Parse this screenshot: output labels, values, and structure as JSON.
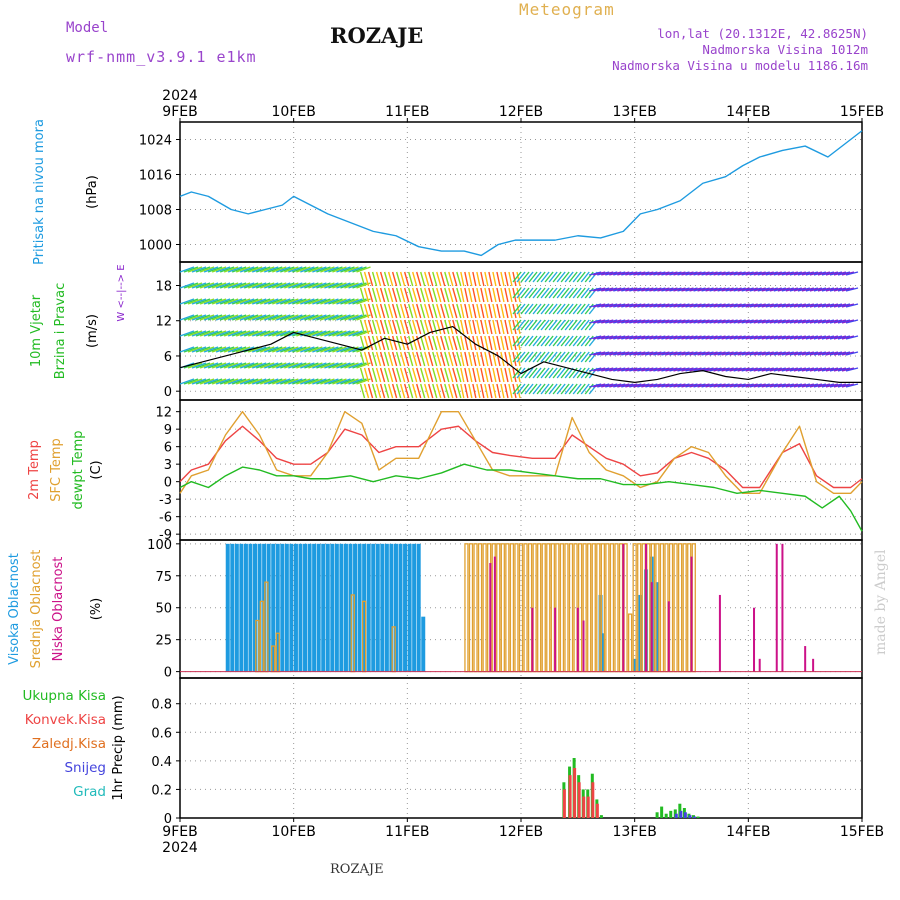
{
  "header": {
    "model_label": "Model",
    "model_name": "wrf-nmm_v3.9.1 e1km",
    "station": "ROZAJE",
    "product": "Meteogram",
    "lonlat": "lon,lat (20.1312E, 42.8625N)",
    "elevation": "Nadmorska Visina 1012m",
    "model_elevation": "Nadmorska Visina u modelu 1186.16m",
    "footer_station": "ROZAJE",
    "credit": "made by Angel"
  },
  "colors": {
    "pressure": "#1e9be0",
    "temp2m": "#ee4444",
    "sfc_temp": "#e0a030",
    "dewpt": "#22bb22",
    "cloud_high": "#1e9be0",
    "cloud_mid": "#e0a030",
    "cloud_low": "#cc1188",
    "precip_total": "#22bb22",
    "precip_conv": "#ee4444",
    "precip_grid": "#e07020",
    "snow": "#4444dd",
    "grad": "#22bbbb",
    "wind_purple": "#8822cc",
    "credit": "#cccccc"
  },
  "chart_data": [
    {
      "type": "line",
      "panel": "pressure",
      "x_labels": [
        "9FEB",
        "10FEB",
        "11FEB",
        "12FEB",
        "13FEB",
        "14FEB",
        "15FEB"
      ],
      "year": "2024",
      "ylabel": [
        "Pritisak na nivou mora",
        "(hPa)"
      ],
      "ylim": [
        996,
        1028
      ],
      "yticks": [
        1000,
        1008,
        1016,
        1024
      ],
      "series": [
        {
          "x": [
            0,
            0.1,
            0.25,
            0.45,
            0.6,
            0.75,
            0.9,
            1.0,
            1.15,
            1.3,
            1.5,
            1.7,
            1.9,
            2.1,
            2.3,
            2.5,
            2.65,
            2.8,
            2.95,
            3.1,
            3.3,
            3.5,
            3.7,
            3.9,
            4.05,
            4.2,
            4.4,
            4.6,
            4.8,
            4.95,
            5.1,
            5.3,
            5.5,
            5.7,
            5.85,
            6.0
          ],
          "values": [
            1011,
            1012,
            1011,
            1008,
            1007,
            1008,
            1009,
            1011,
            1009,
            1007,
            1005,
            1003,
            1002,
            999.5,
            998.5,
            998.5,
            997.5,
            1000,
            1001,
            1001,
            1001,
            1002,
            1001.5,
            1003,
            1007,
            1008,
            1010,
            1014,
            1015.5,
            1018,
            1020,
            1021.5,
            1022.5,
            1020,
            1023,
            1026
          ]
        }
      ]
    },
    {
      "type": "scatter",
      "panel": "wind",
      "ylabel": [
        "10m Vjetar",
        "Brzina i Pravac",
        "(m/s)"
      ],
      "compass": "W <--|--> E",
      "ylim": [
        -1.5,
        22
      ],
      "yticks": [
        0,
        6,
        12,
        18
      ],
      "series": [
        {
          "name": "speed",
          "x": [
            0,
            0.2,
            0.4,
            0.6,
            0.8,
            1.0,
            1.2,
            1.4,
            1.6,
            1.8,
            2.0,
            2.2,
            2.4,
            2.6,
            2.8,
            3.0,
            3.2,
            3.4,
            3.6,
            3.8,
            4.0,
            4.2,
            4.4,
            4.6,
            4.8,
            5.0,
            5.2,
            5.4,
            5.6,
            5.8,
            6.0
          ],
          "values": [
            4,
            5,
            6,
            7,
            8,
            10,
            9,
            8,
            7,
            9,
            8,
            10,
            11,
            8,
            6,
            3,
            5,
            4,
            3,
            2,
            1.5,
            2,
            3,
            3.5,
            2.5,
            2,
            3,
            2.5,
            2,
            1.5,
            1.5
          ]
        }
      ]
    },
    {
      "type": "line",
      "panel": "temperature",
      "ylabel": [
        "2m Temp",
        "SFC Temp",
        "dewpt Temp",
        "(C)"
      ],
      "ylim": [
        -10,
        14
      ],
      "yticks": [
        -9,
        -6,
        -3,
        0,
        3,
        6,
        9,
        12
      ],
      "series": [
        {
          "name": "2m Temp",
          "x": [
            0,
            0.1,
            0.25,
            0.4,
            0.55,
            0.7,
            0.85,
            1.0,
            1.15,
            1.3,
            1.45,
            1.6,
            1.75,
            1.9,
            2.1,
            2.3,
            2.45,
            2.6,
            2.75,
            2.9,
            3.1,
            3.3,
            3.45,
            3.6,
            3.75,
            3.9,
            4.05,
            4.2,
            4.35,
            4.5,
            4.65,
            4.8,
            4.95,
            5.1,
            5.3,
            5.45,
            5.6,
            5.75,
            5.9,
            6.0
          ],
          "values": [
            0,
            2,
            3,
            7,
            9.5,
            7,
            4,
            3,
            3,
            5,
            9,
            8,
            5,
            6,
            6,
            9,
            9.5,
            7,
            5,
            4.5,
            4,
            4,
            8,
            6,
            4,
            3,
            1,
            1.5,
            4,
            5,
            4,
            2,
            -1,
            -1,
            5,
            6.5,
            1,
            -1,
            -1,
            0.5
          ]
        },
        {
          "name": "SFC Temp",
          "x": [
            0,
            0.1,
            0.25,
            0.4,
            0.55,
            0.7,
            0.85,
            1.0,
            1.15,
            1.3,
            1.45,
            1.6,
            1.75,
            1.9,
            2.1,
            2.3,
            2.45,
            2.6,
            2.75,
            2.9,
            3.1,
            3.3,
            3.45,
            3.6,
            3.75,
            3.9,
            4.05,
            4.2,
            4.35,
            4.5,
            4.65,
            4.8,
            4.95,
            5.1,
            5.3,
            5.45,
            5.6,
            5.75,
            5.9,
            6.0
          ],
          "values": [
            -2,
            1,
            2,
            8,
            12,
            8,
            2,
            1,
            1,
            5,
            12,
            10,
            2,
            4,
            4,
            12,
            12,
            7,
            2,
            1,
            1,
            1,
            11,
            5,
            2,
            1,
            -1,
            0,
            4,
            6,
            5,
            1,
            -2,
            -2,
            5,
            9.5,
            0,
            -2,
            -2,
            0
          ]
        },
        {
          "name": "dewpt Temp",
          "x": [
            0,
            0.1,
            0.25,
            0.4,
            0.55,
            0.7,
            0.85,
            1.0,
            1.15,
            1.3,
            1.5,
            1.7,
            1.9,
            2.1,
            2.3,
            2.5,
            2.7,
            2.9,
            3.1,
            3.3,
            3.5,
            3.7,
            3.9,
            4.1,
            4.3,
            4.5,
            4.7,
            4.9,
            5.1,
            5.3,
            5.5,
            5.65,
            5.8,
            5.9,
            6.0
          ],
          "values": [
            -1,
            0,
            -1,
            1,
            2.5,
            2,
            1,
            1,
            0.5,
            0.5,
            1,
            0,
            1,
            0.5,
            1.5,
            3,
            2,
            2,
            1.5,
            1,
            0.5,
            0.5,
            -0.5,
            -0.5,
            0,
            -0.5,
            -1,
            -2,
            -1.5,
            -2,
            -2.5,
            -4.5,
            -2.5,
            -5,
            -8.5
          ]
        }
      ]
    },
    {
      "type": "bar",
      "panel": "clouds",
      "ylabel": [
        "Visoka Oblacnost",
        "Srednja Oblacnost",
        "Niska Oblacnost",
        "(%)"
      ],
      "ylim": [
        -5,
        103
      ],
      "yticks": [
        0,
        25,
        50,
        75,
        100
      ],
      "series": [
        {
          "name": "Visoka Oblacnost",
          "x": [
            0.42,
            0.46,
            0.5,
            0.54,
            0.58,
            0.62,
            0.66,
            0.7,
            0.74,
            0.78,
            0.82,
            0.86,
            0.9,
            0.94,
            0.98,
            1.02,
            1.06,
            1.1,
            1.14,
            1.18,
            1.22,
            1.26,
            1.3,
            1.34,
            1.38,
            1.42,
            1.46,
            1.5,
            1.54,
            1.58,
            1.62,
            1.66,
            1.7,
            1.74,
            1.78,
            1.82,
            1.86,
            1.9,
            1.94,
            1.98,
            2.02,
            2.06,
            2.1,
            2.14,
            3.7,
            3.72,
            4.0,
            4.05,
            4.1,
            4.15,
            4.2
          ],
          "values": [
            100,
            100,
            100,
            100,
            100,
            100,
            100,
            100,
            100,
            100,
            100,
            100,
            100,
            100,
            100,
            100,
            100,
            100,
            100,
            100,
            100,
            100,
            100,
            100,
            100,
            100,
            100,
            100,
            100,
            100,
            100,
            100,
            100,
            100,
            100,
            100,
            100,
            100,
            100,
            100,
            100,
            100,
            100,
            43,
            60,
            30,
            10,
            60,
            80,
            90,
            70
          ]
        },
        {
          "name": "Srednja Oblacnost",
          "x": [
            0.68,
            0.72,
            0.76,
            0.82,
            0.86,
            1.52,
            1.62,
            1.88,
            2.52,
            2.56,
            2.6,
            2.64,
            2.68,
            2.72,
            2.76,
            2.8,
            2.84,
            2.88,
            2.92,
            2.96,
            3.0,
            3.04,
            3.08,
            3.12,
            3.16,
            3.2,
            3.24,
            3.28,
            3.32,
            3.36,
            3.4,
            3.44,
            3.48,
            3.52,
            3.56,
            3.6,
            3.64,
            3.68,
            3.72,
            3.76,
            3.8,
            3.84,
            3.88,
            3.92,
            3.96,
            4.0,
            4.04,
            4.08,
            4.12,
            4.16,
            4.2,
            4.24,
            4.28,
            4.32,
            4.36,
            4.4,
            4.44,
            4.48,
            4.52
          ],
          "values": [
            40,
            55,
            70,
            20,
            30,
            60,
            55,
            35,
            100,
            100,
            100,
            100,
            100,
            100,
            100,
            100,
            100,
            100,
            100,
            100,
            100,
            100,
            100,
            100,
            100,
            100,
            100,
            100,
            100,
            100,
            100,
            100,
            100,
            100,
            100,
            100,
            100,
            100,
            100,
            100,
            100,
            100,
            100,
            100,
            45,
            100,
            100,
            100,
            100,
            100,
            100,
            100,
            100,
            100,
            100,
            100,
            100,
            100,
            100
          ]
        },
        {
          "name": "Niska Oblacnost",
          "x": [
            2.73,
            2.77,
            3.1,
            3.3,
            3.5,
            3.55,
            3.9,
            4.1,
            4.15,
            4.3,
            4.5,
            4.75,
            5.05,
            5.1,
            5.25,
            5.3,
            5.5,
            5.57
          ],
          "values": [
            85,
            90,
            50,
            50,
            50,
            40,
            100,
            100,
            70,
            55,
            90,
            60,
            50,
            10,
            100,
            100,
            20,
            10
          ]
        }
      ]
    },
    {
      "type": "bar",
      "panel": "precip",
      "ylabel": [
        "1hr Precip (mm)"
      ],
      "legend": [
        "Ukupna Kisa",
        "Konvek.Kisa",
        "Zaledj.Kisa",
        "Snijeg",
        "Grad"
      ],
      "ylim": [
        0,
        0.98
      ],
      "yticks": [
        0,
        0.2,
        0.4,
        0.6,
        0.8
      ],
      "yticklabels": [
        "0",
        "0.2",
        "0.4",
        "0.6",
        "0.8"
      ],
      "series": [
        {
          "name": "Ukupna Kisa",
          "x": [
            3.38,
            3.43,
            3.47,
            3.51,
            3.55,
            3.59,
            3.63,
            3.67,
            3.71,
            4.2,
            4.24,
            4.28,
            4.32,
            4.36,
            4.4,
            4.44,
            4.48,
            4.52,
            4.56
          ],
          "values": [
            0.25,
            0.36,
            0.42,
            0.3,
            0.2,
            0.2,
            0.31,
            0.13,
            0.02,
            0.04,
            0.08,
            0.03,
            0.05,
            0.06,
            0.1,
            0.07,
            0.03,
            0.02,
            0.01
          ]
        },
        {
          "name": "Konvek.Kisa",
          "x": [
            3.38,
            3.43,
            3.47,
            3.51,
            3.55,
            3.59,
            3.63,
            3.67
          ],
          "values": [
            0.2,
            0.3,
            0.35,
            0.25,
            0.15,
            0.15,
            0.25,
            0.1
          ]
        },
        {
          "name": "Snijeg",
          "x": [
            4.36,
            4.4,
            4.44,
            4.48,
            4.52
          ],
          "values": [
            0.03,
            0.05,
            0.04,
            0.02,
            0.01
          ]
        }
      ]
    }
  ]
}
